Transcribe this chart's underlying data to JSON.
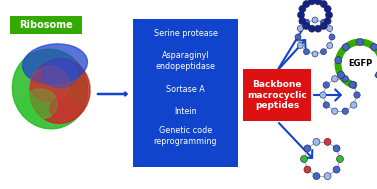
{
  "bg_color": "#ffffff",
  "ribosome_label": "Ribosome",
  "ribosome_label_bg": "#33aa00",
  "ribosome_label_color": "#ffffff",
  "blue_box_bg": "#1144cc",
  "blue_box_text_color": "#ffffff",
  "blue_box_items": [
    "Serine protease",
    "Asparaginyl\nendopeptidase",
    "Sortase A",
    "Intein",
    "Genetic code\nreprogramming"
  ],
  "red_box_bg": "#dd1111",
  "red_box_text_color": "#ffffff",
  "red_box_text": "Backbone\nmacrocyclic\npeptides",
  "arrow_color": "#1144cc",
  "egfp_color": "#33aa00",
  "egfp_label": "EGFP",
  "egfp_label_color": "#000000"
}
